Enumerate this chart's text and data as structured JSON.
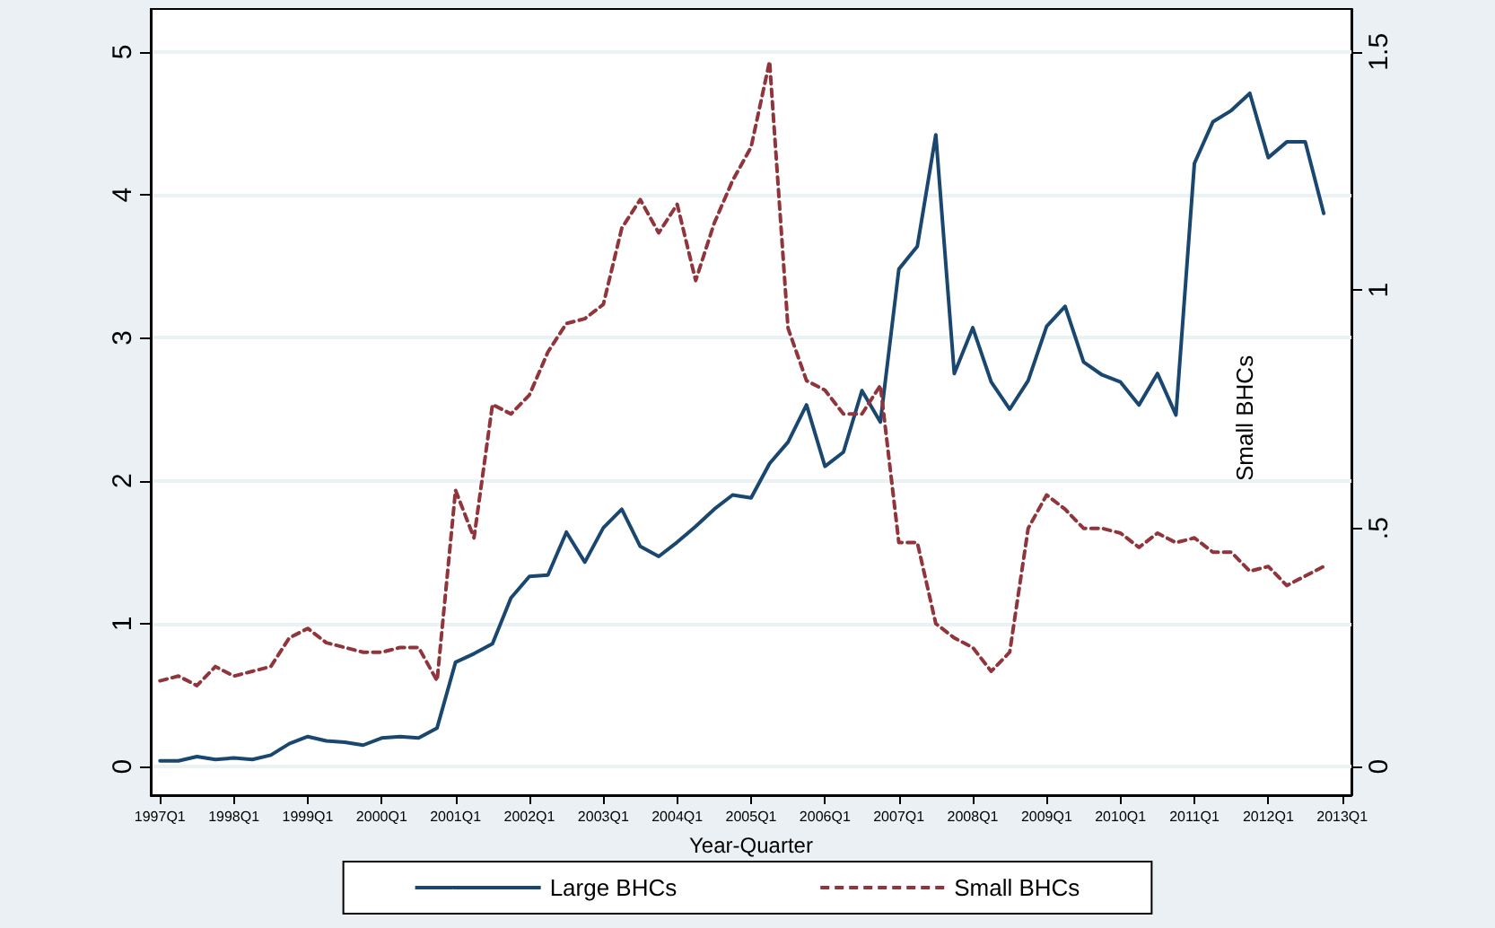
{
  "chart_data": {
    "type": "line",
    "xlabel": "Year-Quarter",
    "categories": [
      "1997Q1",
      null,
      null,
      null,
      "1998Q1",
      null,
      null,
      null,
      "1999Q1",
      null,
      null,
      null,
      "2000Q1",
      null,
      null,
      null,
      "2001Q1",
      null,
      null,
      null,
      "2002Q1",
      null,
      null,
      null,
      "2003Q1",
      null,
      null,
      null,
      "2004Q1",
      null,
      null,
      null,
      "2005Q1",
      null,
      null,
      null,
      "2006Q1",
      null,
      null,
      null,
      "2007Q1",
      null,
      null,
      null,
      "2008Q1",
      null,
      null,
      null,
      "2009Q1",
      null,
      null,
      null,
      "2010Q1",
      null,
      null,
      null,
      "2011Q1",
      null,
      null,
      null,
      "2012Q1",
      null,
      null,
      null,
      "2013Q1"
    ],
    "series": [
      {
        "name": "Large BHCs",
        "color": "#1a476f",
        "line_style": "solid",
        "values": [
          0.04,
          0.04,
          0.07,
          0.05,
          0.06,
          0.05,
          0.08,
          0.16,
          0.21,
          0.18,
          0.17,
          0.15,
          0.2,
          0.21,
          0.2,
          0.27,
          0.73,
          0.79,
          0.86,
          1.18,
          1.33,
          1.34,
          1.64,
          1.43,
          1.67,
          1.8,
          1.54,
          1.47,
          1.57,
          1.68,
          1.8,
          1.9,
          1.88,
          2.12,
          2.27,
          2.53,
          2.1,
          2.2,
          2.63,
          2.41,
          3.48,
          3.64,
          4.42,
          2.75,
          3.07,
          2.69,
          2.5,
          2.7,
          3.08,
          3.22,
          2.83,
          2.74,
          2.69,
          2.53,
          2.75,
          2.46,
          4.22,
          4.51,
          4.59,
          4.71,
          4.26,
          4.37,
          4.37,
          3.87,
          null
        ]
      },
      {
        "name": "Small BHCs",
        "color": "#90353b",
        "line_style": "dashed",
        "axis": "y2",
        "values": [
          0.18,
          0.19,
          0.17,
          0.21,
          0.19,
          0.2,
          0.21,
          0.27,
          0.29,
          0.26,
          0.25,
          0.24,
          0.24,
          0.25,
          0.25,
          0.18,
          0.58,
          0.48,
          0.76,
          0.74,
          0.78,
          0.87,
          0.93,
          0.94,
          0.97,
          1.13,
          1.19,
          1.12,
          1.18,
          1.02,
          1.14,
          1.23,
          1.3,
          1.48,
          0.92,
          0.81,
          0.79,
          0.74,
          0.74,
          0.8,
          0.47,
          0.47,
          0.3,
          0.27,
          0.25,
          0.2,
          0.24,
          0.5,
          0.57,
          0.54,
          0.5,
          0.5,
          0.49,
          0.46,
          0.49,
          0.47,
          0.48,
          0.45,
          0.45,
          0.41,
          0.42,
          0.38,
          0.4,
          0.42,
          null
        ]
      }
    ],
    "ylim": [
      -0.2,
      5.3
    ],
    "yticks": [
      0,
      1,
      2,
      3,
      4,
      5
    ],
    "y2lim": [
      -0.06,
      1.59
    ],
    "y2ticks": [
      {
        "value": 0,
        "label": "0"
      },
      {
        "value": 0.5,
        "label": ".5"
      },
      {
        "value": 1,
        "label": "1"
      },
      {
        "value": 1.5,
        "label": "1.5"
      }
    ],
    "annotations": [
      "Small BHCs"
    ],
    "grid": "y",
    "legend": "bottom",
    "marker": "none"
  }
}
